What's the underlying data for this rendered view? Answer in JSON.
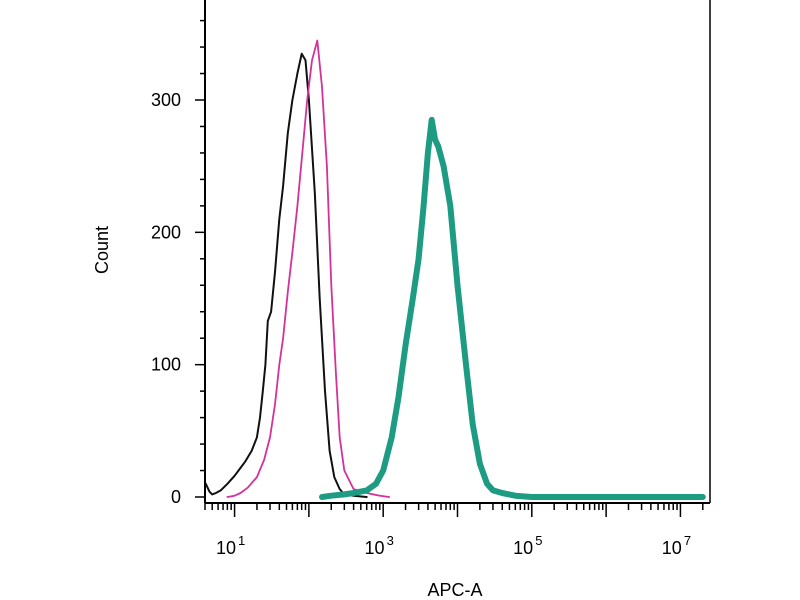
{
  "chart_data": {
    "type": "line",
    "xlabel": "APC-A",
    "ylabel": "Count",
    "xscale": "log",
    "xlim": [
      4,
      25000000
    ],
    "ylim": [
      0,
      360
    ],
    "y_ticks": [
      {
        "value": 0,
        "label": "0"
      },
      {
        "value": 100,
        "label": "100"
      },
      {
        "value": 200,
        "label": "200"
      },
      {
        "value": 300,
        "label": "300"
      }
    ],
    "x_ticks": [
      {
        "value": 10,
        "base": "10",
        "exp": "1"
      },
      {
        "value": 1000,
        "base": "10",
        "exp": "3"
      },
      {
        "value": 100000,
        "base": "10",
        "exp": "5"
      },
      {
        "value": 10000000,
        "base": "10",
        "exp": "7"
      }
    ],
    "series": [
      {
        "color": "#111111",
        "x": [
          4.1,
          4.6,
          5,
          5.6,
          6.5,
          8,
          10,
          12,
          14,
          17,
          20,
          22,
          24,
          26,
          28,
          31,
          35,
          40,
          45,
          52,
          60,
          70,
          80,
          90,
          100,
          120,
          140,
          165,
          190,
          220,
          260,
          300,
          400,
          600
        ],
        "y": [
          10,
          4,
          2,
          3,
          5,
          10,
          16,
          22,
          27,
          35,
          45,
          60,
          80,
          100,
          133,
          140,
          170,
          210,
          235,
          275,
          300,
          320,
          335,
          330,
          300,
          230,
          150,
          80,
          35,
          15,
          6,
          2,
          1,
          0
        ]
      },
      {
        "color": "#d3319c",
        "x": [
          8,
          10,
          12,
          15,
          20,
          25,
          30,
          35,
          40,
          45,
          52,
          60,
          70,
          80,
          95,
          110,
          130,
          150,
          175,
          200,
          230,
          260,
          300,
          400,
          600,
          900,
          1200
        ],
        "y": [
          0,
          1,
          3,
          7,
          15,
          28,
          45,
          70,
          100,
          120,
          155,
          185,
          220,
          255,
          300,
          330,
          345,
          310,
          250,
          160,
          95,
          45,
          20,
          6,
          3,
          1,
          0
        ]
      },
      {
        "color": "#1e9c83",
        "x": [
          150,
          200,
          300,
          400,
          600,
          800,
          1000,
          1300,
          1600,
          2000,
          2500,
          3000,
          3500,
          4000,
          4500,
          5000,
          5500,
          6500,
          8000,
          10000,
          13000,
          16000,
          20000,
          25000,
          30000,
          40000,
          60000,
          100000,
          1000000,
          20000000
        ],
        "y": [
          0,
          1,
          2,
          3,
          5,
          10,
          20,
          45,
          75,
          115,
          150,
          180,
          220,
          260,
          285,
          270,
          265,
          250,
          220,
          160,
          100,
          55,
          25,
          10,
          5,
          3,
          1,
          0,
          0,
          0
        ]
      }
    ]
  }
}
